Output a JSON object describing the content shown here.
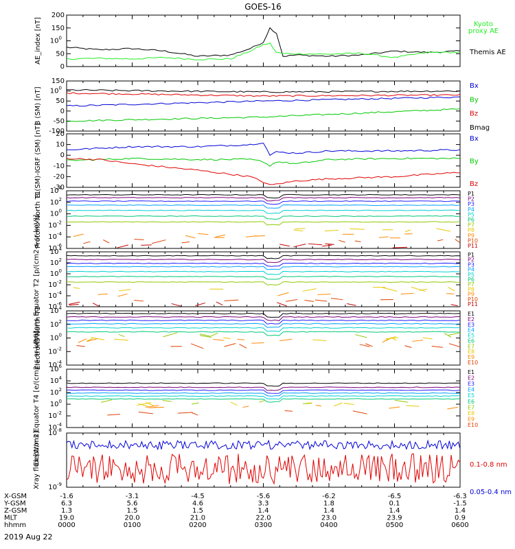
{
  "title": "GOES-16",
  "date_label": "2019 Aug 22",
  "colors": {
    "axis": "#000000",
    "blue": "#0000d8",
    "green": "#00c800",
    "red": "#e00000",
    "black": "#000000",
    "ae_proxy": "#22ee22",
    "ch": [
      "#000000",
      "#7a007a",
      "#2020ff",
      "#00a0ff",
      "#00d0d0",
      "#00c878",
      "#90c800",
      "#e8c800",
      "#ff8800",
      "#e04000",
      "#c00000"
    ]
  },
  "time_axis": {
    "unit": "hhmm",
    "ticks": [
      "0000",
      "0100",
      "0200",
      "0300",
      "0400",
      "0500",
      "0600"
    ]
  },
  "position_rows": [
    {
      "label": "X-GSM",
      "values": [
        "-1.6",
        "-3.1",
        "-4.5",
        "-5.6",
        "-6.2",
        "-6.5",
        "-6.3"
      ]
    },
    {
      "label": "Y-GSM",
      "values": [
        "6.3",
        "5.6",
        "4.6",
        "3.3",
        "1.8",
        "0.1",
        "-1.5"
      ]
    },
    {
      "label": "Z-GSM",
      "values": [
        "1.3",
        "1.5",
        "1.5",
        "1.4",
        "1.4",
        "1.4",
        "1.4"
      ]
    },
    {
      "label": "MLT",
      "values": [
        "19.0",
        "20.0",
        "21.0",
        "22.0",
        "23.0",
        "23.9",
        "0.9"
      ]
    },
    {
      "label": "hhmm",
      "values": [
        "0000",
        "0100",
        "0200",
        "0300",
        "0400",
        "0500",
        "0600"
      ]
    }
  ],
  "chart_data": [
    {
      "type": "line",
      "ylabel": "AE_index [nT]",
      "ylim": [
        0,
        200
      ],
      "yticks": [
        "0",
        "50",
        "100",
        "150",
        "200"
      ],
      "legend": [
        {
          "text": "Kyoto",
          "color": "#22ee22"
        },
        {
          "text": "proxy AE",
          "color": "#22ee22"
        },
        {
          "text": "Themis AE",
          "color": "#000000"
        }
      ],
      "series": [
        {
          "name": "Themis AE",
          "color": "#000000",
          "x": [
            0,
            0.5,
            1,
            1.5,
            2,
            2.5,
            2.8,
            3.0,
            3.1,
            3.2,
            3.3,
            3.5,
            4,
            4.5,
            5,
            5.5,
            6
          ],
          "y": [
            75,
            65,
            70,
            60,
            40,
            45,
            70,
            95,
            150,
            130,
            40,
            45,
            40,
            45,
            60,
            55,
            60
          ]
        },
        {
          "name": "Kyoto proxy AE",
          "color": "#22ee22",
          "x": [
            0,
            0.5,
            1,
            1.5,
            2,
            2.5,
            2.8,
            3.0,
            3.1,
            3.2,
            3.3,
            3.5,
            4,
            4.5,
            5,
            5.5,
            6
          ],
          "y": [
            30,
            32,
            30,
            35,
            28,
            30,
            60,
            85,
            90,
            55,
            50,
            50,
            48,
            52,
            35,
            55,
            55
          ]
        }
      ]
    },
    {
      "type": "line",
      "ylabel": "B (SM) [nT]",
      "ylim": [
        -100,
        150
      ],
      "yticks": [
        "-100",
        "-50",
        "0",
        "50",
        "100",
        "150"
      ],
      "legend": [
        {
          "text": "Bx",
          "color": "#0000d8"
        },
        {
          "text": "By",
          "color": "#00c800"
        },
        {
          "text": "Bz",
          "color": "#e00000"
        },
        {
          "text": "Bmag",
          "color": "#000000"
        }
      ],
      "series": [
        {
          "name": "Bx",
          "color": "#0000d8",
          "x": [
            0,
            3,
            6
          ],
          "y": [
            25,
            50,
            70
          ]
        },
        {
          "name": "By",
          "color": "#00c800",
          "x": [
            0,
            3,
            6
          ],
          "y": [
            -50,
            -30,
            10
          ]
        },
        {
          "name": "Bz",
          "color": "#e00000",
          "x": [
            0,
            3,
            6
          ],
          "y": [
            90,
            75,
            80
          ]
        },
        {
          "name": "Bmag",
          "color": "#000000",
          "x": [
            0,
            3,
            6
          ],
          "y": [
            105,
            95,
            100
          ]
        }
      ]
    },
    {
      "type": "line",
      "ylabel": "B (SM)-IGRF (SM) [nT]",
      "ylim": [
        -30,
        20
      ],
      "yticks": [
        "-30",
        "-20",
        "-10",
        "0",
        "10",
        "20"
      ],
      "legend": [
        {
          "text": "Bx",
          "color": "#0000d8"
        },
        {
          "text": "By",
          "color": "#00c800"
        },
        {
          "text": "Bz",
          "color": "#e00000"
        }
      ],
      "series": [
        {
          "name": "Bx",
          "color": "#0000d8",
          "x": [
            0,
            1,
            2,
            2.8,
            3.0,
            3.1,
            3.2,
            3.5,
            4,
            5,
            6
          ],
          "y": [
            5,
            8,
            8,
            10,
            12,
            0,
            3,
            2,
            4,
            4,
            5
          ]
        },
        {
          "name": "By",
          "color": "#00c800",
          "x": [
            0,
            1,
            2,
            2.8,
            3.0,
            3.1,
            3.2,
            3.5,
            4,
            5,
            6
          ],
          "y": [
            -5,
            -3,
            -4,
            -4,
            -6,
            -10,
            -6,
            -8,
            -4,
            -3,
            -3
          ]
        },
        {
          "name": "Bz",
          "color": "#e00000",
          "x": [
            0,
            0.5,
            1,
            2,
            2.8,
            3.0,
            3.1,
            3.5,
            4,
            5,
            6
          ],
          "y": [
            -3,
            -4,
            -8,
            -14,
            -20,
            -25,
            -28,
            -24,
            -22,
            -20,
            -16
          ]
        }
      ]
    },
    {
      "type": "line",
      "ylabel": "Protons North T1",
      "log": true,
      "ylim_exp": [
        -6,
        4
      ],
      "yticks": [
        "10-6",
        "10-4",
        "10-2",
        "100",
        "102",
        "104"
      ],
      "legend": [
        {
          "text": "P1"
        },
        {
          "text": "P2"
        },
        {
          "text": "P3"
        },
        {
          "text": "P4"
        },
        {
          "text": "P5"
        },
        {
          "text": "P6"
        },
        {
          "text": "P7"
        },
        {
          "text": "P8"
        },
        {
          "text": "P9"
        },
        {
          "text": "P10"
        },
        {
          "text": "P11"
        }
      ],
      "levels_log10": [
        3.3,
        2.8,
        2.2,
        1.5,
        0.6,
        -0.4,
        -1.4,
        -2.8,
        -3.8,
        -4.8,
        -5.5
      ]
    },
    {
      "type": "line",
      "ylabel": "Protons Equator T2 [p/(cm2-s-sr-keV)]",
      "log": true,
      "ylim_exp": [
        -6,
        4
      ],
      "yticks": [
        "10-6",
        "10-4",
        "10-2",
        "100",
        "102",
        "104"
      ],
      "legend": [
        {
          "text": "P1"
        },
        {
          "text": "P2"
        },
        {
          "text": "P3"
        },
        {
          "text": "P4"
        },
        {
          "text": "P5"
        },
        {
          "text": "P6"
        },
        {
          "text": "P7"
        },
        {
          "text": "P8"
        },
        {
          "text": "P9"
        },
        {
          "text": "P10"
        },
        {
          "text": "P11"
        }
      ],
      "levels_log10": [
        3.3,
        2.6,
        1.9,
        1.3,
        0.4,
        -0.5,
        -1.5,
        -2.8,
        -3.8,
        -4.8,
        -5.5
      ]
    },
    {
      "type": "line",
      "ylabel": "Electrons North T3",
      "log": true,
      "ylim_exp": [
        -4,
        4
      ],
      "yticks": [
        "10-4",
        "10-2",
        "100",
        "102",
        "104"
      ],
      "legend": [
        {
          "text": "E1"
        },
        {
          "text": "E2"
        },
        {
          "text": "E3"
        },
        {
          "text": "E4"
        },
        {
          "text": "E5"
        },
        {
          "text": "E6"
        },
        {
          "text": "E7"
        },
        {
          "text": "E8"
        },
        {
          "text": "E9"
        },
        {
          "text": "E10"
        }
      ],
      "levels_log10": [
        3.6,
        3.1,
        2.6,
        2.1,
        1.5,
        0.9,
        0.4,
        -0.1,
        -0.5,
        -1.2
      ]
    },
    {
      "type": "line",
      "ylabel": "Electrons Equator T4 [e/(cm2-s-sr-keV)]",
      "log": true,
      "ylim_exp": [
        -4,
        6
      ],
      "yticks": [
        "10-4",
        "10-2",
        "100",
        "102",
        "104",
        "106"
      ],
      "legend": [
        {
          "text": "E1"
        },
        {
          "text": "E2"
        },
        {
          "text": "E3"
        },
        {
          "text": "E4"
        },
        {
          "text": "E5"
        },
        {
          "text": "E6"
        },
        {
          "text": "E7"
        },
        {
          "text": "E8"
        },
        {
          "text": "E9"
        },
        {
          "text": "E10"
        }
      ],
      "levels_log10": [
        3.6,
        2.9,
        2.4,
        1.9,
        1.4,
        0.9,
        0.4,
        0.0,
        -0.5,
        -1.5
      ]
    },
    {
      "type": "line",
      "ylabel": "Xray flux [W/m2]",
      "log": true,
      "ylim_exp": [
        -9,
        -8
      ],
      "yticks": [
        "10-9",
        "10-8"
      ],
      "legend": [
        {
          "text": "0.1-0.8 nm",
          "color": "#e00000"
        },
        {
          "text": "0.05-0.4 nm",
          "color": "#0000d8"
        }
      ],
      "series": [
        {
          "name": "0.1-0.8 nm",
          "color": "#e00000",
          "mean_frac": 0.66
        },
        {
          "name": "0.05-0.4 nm",
          "color": "#0000d8",
          "mean_frac": 0.22
        }
      ]
    }
  ]
}
